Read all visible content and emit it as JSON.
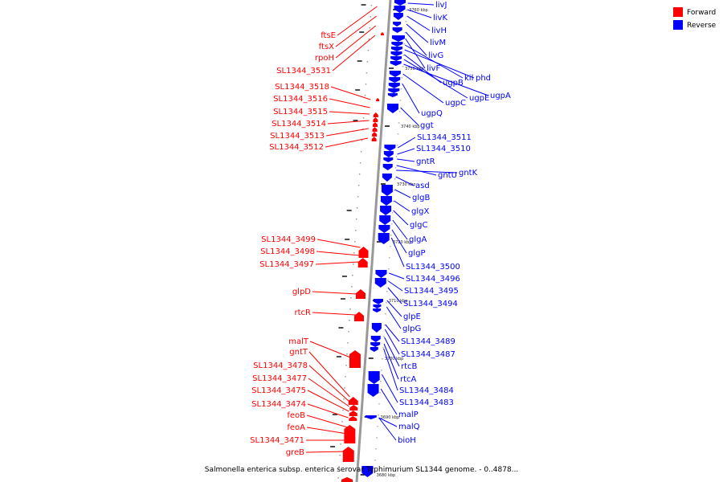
{
  "caption": "Salmonella enterica subsp. enterica serovar Typhimurium SL1344 genome. - 0..4878...",
  "legend": [
    {
      "label": "Forward",
      "color": "#ff0000"
    },
    {
      "label": "Reverse",
      "color": "#0000ff"
    }
  ],
  "colors": {
    "forward": "#ff0000",
    "reverse": "#0000ff",
    "backbone": "#999999"
  },
  "ticks": [
    "3760 kbp",
    "3750 kbp",
    "3740 kbp",
    "3730 kbp",
    "3720 kbp",
    "3710 kbp",
    "3700 kbp",
    "3690 kbp",
    "3680 kbp"
  ],
  "forward_genes": [
    "ftsE",
    "ftsX",
    "rpoH",
    "SL1344_3531",
    "SL1344_3518",
    "SL1344_3516",
    "SL1344_3515",
    "SL1344_3514",
    "SL1344_3513",
    "SL1344_3512",
    "SL1344_3499",
    "SL1344_3498",
    "SL1344_3497",
    "glpD",
    "rtcR",
    "malT",
    "gntT",
    "SL1344_3478",
    "SL1344_3477",
    "SL1344_3475",
    "SL1344_3474",
    "feoB",
    "feoA",
    "SL1344_3471",
    "greB"
  ],
  "reverse_genes": [
    "livJ",
    "livK",
    "livH",
    "livM",
    "livG",
    "livF",
    "kil",
    "phd",
    "ugpB",
    "ugpE",
    "ugpA",
    "ugpC",
    "ugpQ",
    "ggt",
    "SL1344_3511",
    "SL1344_3510",
    "gntR",
    "gntU",
    "gntK",
    "asd",
    "glgB",
    "glgX",
    "glgC",
    "glgA",
    "glgP",
    "SL1344_3500",
    "SL1344_3496",
    "SL1344_3495",
    "SL1344_3494",
    "glpE",
    "glpG",
    "SL1344_3489",
    "SL1344_3487",
    "rtcB",
    "rtcA",
    "SL1344_3484",
    "SL1344_3483",
    "malP",
    "malQ",
    "bioH"
  ]
}
